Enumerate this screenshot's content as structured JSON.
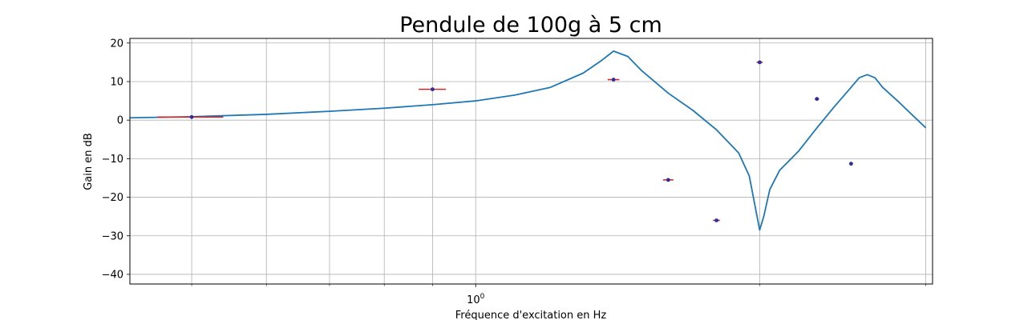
{
  "chart_data": {
    "type": "line",
    "title": "Pendule de 100g à 5 cm",
    "xlabel": "Fréquence d'excitation en Hz",
    "ylabel": "Gain en dB",
    "xscale": "log",
    "xlim": [
      0.43,
      3.05
    ],
    "ylim": [
      -42.5,
      21.2
    ],
    "grid": true,
    "yticks": [
      20,
      10,
      0,
      -10,
      -20,
      -30,
      -40
    ],
    "ytick_labels": [
      "20",
      "10",
      "0",
      "−10",
      "−20",
      "−30",
      "−40"
    ],
    "xtick_major": [
      1
    ],
    "xtick_major_label_base": "10",
    "xtick_major_label_exp": "0",
    "xtick_minor": [
      0.5,
      0.6,
      0.7,
      0.8,
      0.9,
      2,
      3
    ],
    "series": [
      {
        "kind": "line",
        "color": "#1f77b4",
        "x": [
          0.43,
          0.5,
          0.6,
          0.7,
          0.8,
          0.9,
          1.0,
          1.1,
          1.2,
          1.3,
          1.36,
          1.4,
          1.45,
          1.5,
          1.6,
          1.7,
          1.8,
          1.9,
          1.95,
          2.0,
          2.02,
          2.05,
          2.1,
          2.2,
          2.3,
          2.4,
          2.5,
          2.55,
          2.6,
          2.65,
          2.7,
          2.8,
          3.0
        ],
        "y": [
          0.6,
          0.9,
          1.5,
          2.3,
          3.1,
          4.0,
          5.0,
          6.5,
          8.5,
          12.2,
          15.5,
          17.9,
          16.5,
          12.8,
          7.0,
          2.5,
          -2.5,
          -8.5,
          -14.5,
          -28.5,
          -25.0,
          -18.0,
          -13.0,
          -8.0,
          -2.0,
          3.5,
          8.5,
          11.0,
          11.8,
          11.0,
          8.5,
          5.0,
          -2.0
        ]
      }
    ],
    "points": {
      "color": "#2e2e9e",
      "xerr_color": "#d62728",
      "x": [
        0.5,
        0.9,
        1.4,
        1.6,
        1.8,
        2.0,
        2.3,
        2.5
      ],
      "y": [
        0.8,
        8.0,
        10.5,
        -15.5,
        -26.0,
        15.0,
        5.5,
        -11.3
      ],
      "xerr": [
        0.04,
        0.03,
        0.02,
        0.02,
        0.015,
        0.015,
        0.012,
        0.01
      ]
    }
  }
}
